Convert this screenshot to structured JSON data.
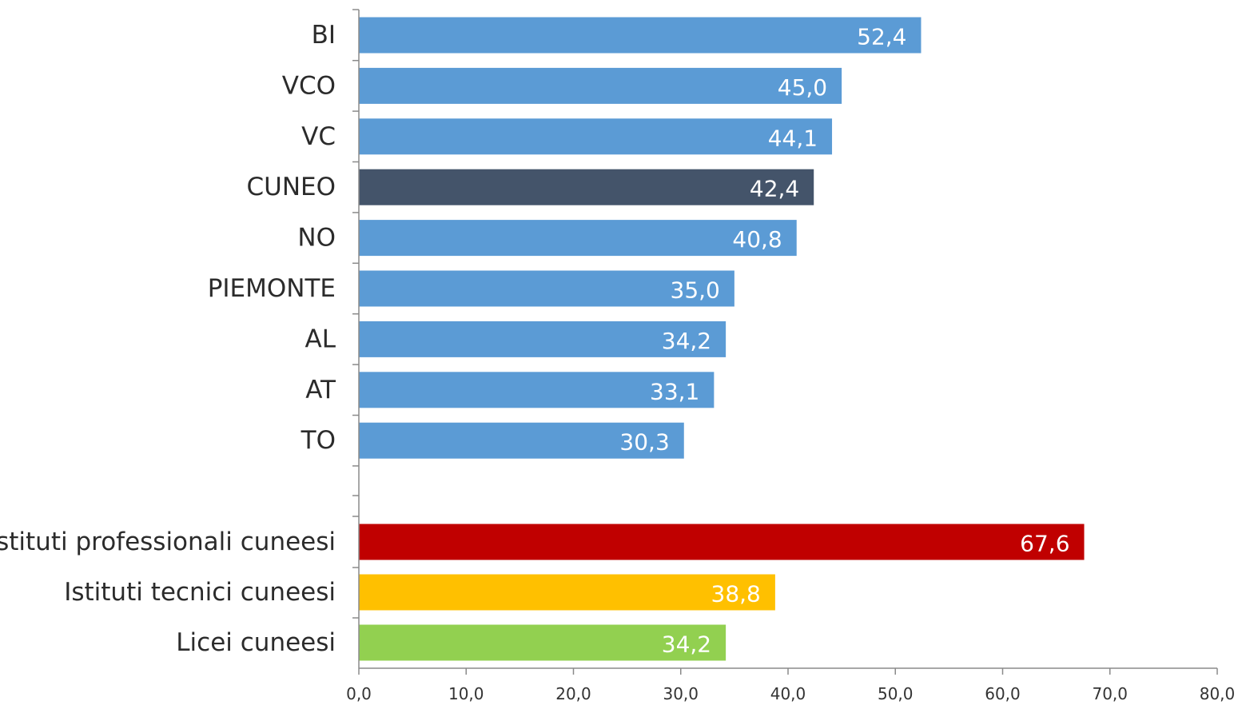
{
  "chart_data": {
    "type": "bar",
    "orientation": "horizontal",
    "title": "",
    "xlabel": "",
    "ylabel": "",
    "xlim": [
      0,
      80
    ],
    "xticks": [
      "0,0",
      "10,0",
      "20,0",
      "30,0",
      "40,0",
      "50,0",
      "60,0",
      "70,0",
      "80,0"
    ],
    "grid": false,
    "legend": "none",
    "categories": [
      "BI",
      "VCO",
      "VC",
      "CUNEO",
      "NO",
      "PIEMONTE",
      "AL",
      "AT",
      "TO",
      "Istituti professionali cuneesi",
      "Istituti tecnici cuneesi",
      "Licei cuneesi"
    ],
    "values": [
      52.4,
      45.0,
      44.1,
      42.4,
      40.8,
      35.0,
      34.2,
      33.1,
      30.3,
      67.6,
      38.8,
      34.2
    ],
    "value_labels": [
      "52,4",
      "45,0",
      "44,1",
      "42,4",
      "40,8",
      "35,0",
      "34,2",
      "33,1",
      "30,3",
      "67,6",
      "38,8",
      "34,2"
    ],
    "colors": [
      "#5b9bd5",
      "#5b9bd5",
      "#5b9bd5",
      "#44546a",
      "#5b9bd5",
      "#5b9bd5",
      "#5b9bd5",
      "#5b9bd5",
      "#5b9bd5",
      "#c00000",
      "#ffc000",
      "#92d050"
    ]
  }
}
